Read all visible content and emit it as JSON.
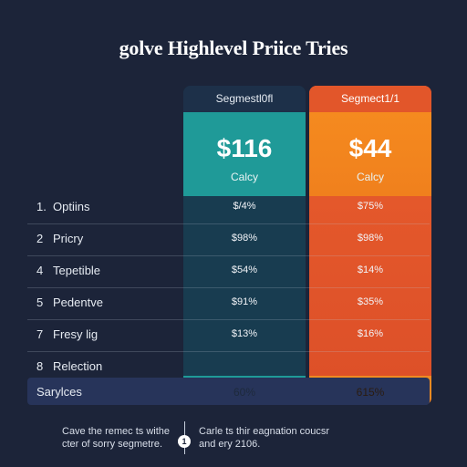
{
  "title": "golve Highlevel Priice Tries",
  "columns": [
    {
      "header": "Segmestl0fl",
      "price": "$116",
      "sub": "Calcy"
    },
    {
      "header": "Segmect1/1",
      "price": "$44",
      "sub": "Calcy"
    }
  ],
  "rows": [
    {
      "num": "1.",
      "label": "Optiins",
      "a": "$/4%",
      "b": "$75%"
    },
    {
      "num": "2",
      "label": "Pricry",
      "a": "$98%",
      "b": "$98%"
    },
    {
      "num": "4",
      "label": "Tepetible",
      "a": "$54%",
      "b": "$14%"
    },
    {
      "num": "5",
      "label": "Pedentve",
      "a": "$91%",
      "b": "$35%"
    },
    {
      "num": "7",
      "label": "Fresy lig",
      "a": "$13%",
      "b": "$16%"
    },
    {
      "num": "8",
      "label": "Relection",
      "a": "",
      "b": ""
    }
  ],
  "footer": {
    "label": "Sarylces",
    "a": "60%",
    "b": "615%"
  },
  "notes": {
    "left": "Cave the remec ts withe cter of sorry segmetre.",
    "info": "1",
    "right": "Carle ts thir eagnation coucsr and ery 2106."
  },
  "colors": {
    "background": "#1c2439",
    "teal": "#1f9a98",
    "orange": "#f0801d",
    "red_orange": "#e2562a",
    "navy_column": "#173a4e"
  }
}
